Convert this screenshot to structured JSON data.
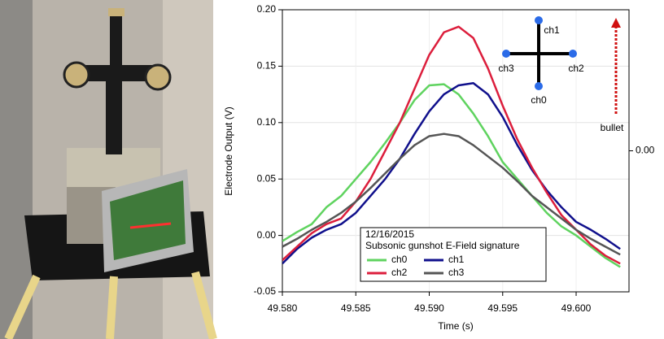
{
  "chart_data": {
    "type": "line",
    "x_label": "Time (s)",
    "y_label": "Electrode Output (V)",
    "x": [
      49.58,
      49.581,
      49.582,
      49.583,
      49.584,
      49.585,
      49.586,
      49.587,
      49.588,
      49.589,
      49.59,
      49.591,
      49.592,
      49.593,
      49.594,
      49.595,
      49.596,
      49.597,
      49.598,
      49.599,
      49.6,
      49.601,
      49.602,
      49.603
    ],
    "series": [
      {
        "name": "ch0",
        "color": "#5fd35f",
        "values": [
          -0.005,
          0.003,
          0.01,
          0.025,
          0.035,
          0.05,
          0.065,
          0.082,
          0.1,
          0.12,
          0.133,
          0.134,
          0.125,
          0.108,
          0.088,
          0.065,
          0.05,
          0.035,
          0.02,
          0.008,
          0.0,
          -0.01,
          -0.02,
          -0.028
        ]
      },
      {
        "name": "ch1",
        "color": "#10108c",
        "values": [
          -0.025,
          -0.012,
          -0.002,
          0.005,
          0.01,
          0.02,
          0.035,
          0.05,
          0.068,
          0.09,
          0.11,
          0.125,
          0.133,
          0.135,
          0.125,
          0.105,
          0.08,
          0.058,
          0.04,
          0.025,
          0.012,
          0.005,
          -0.003,
          -0.012
        ]
      },
      {
        "name": "ch2",
        "color": "#dc1e3c",
        "values": [
          -0.022,
          -0.01,
          0.002,
          0.01,
          0.015,
          0.03,
          0.05,
          0.075,
          0.1,
          0.13,
          0.16,
          0.18,
          0.185,
          0.175,
          0.148,
          0.115,
          0.085,
          0.06,
          0.038,
          0.018,
          0.005,
          -0.008,
          -0.018,
          -0.025
        ]
      },
      {
        "name": "ch3",
        "color": "#555555",
        "values": [
          -0.01,
          -0.003,
          0.005,
          0.012,
          0.02,
          0.03,
          0.042,
          0.055,
          0.068,
          0.08,
          0.088,
          0.09,
          0.088,
          0.08,
          0.07,
          0.06,
          0.048,
          0.035,
          0.025,
          0.015,
          0.005,
          -0.003,
          -0.01,
          -0.017
        ]
      }
    ],
    "xlim": [
      49.58,
      49.6036
    ],
    "ylim": [
      -0.05,
      0.2
    ],
    "xticks": [
      {
        "value": 49.58,
        "label": "49.580"
      },
      {
        "value": 49.585,
        "label": "49.585"
      },
      {
        "value": 49.59,
        "label": "49.590"
      },
      {
        "value": 49.595,
        "label": "49.595"
      },
      {
        "value": 49.6,
        "label": "49.600"
      }
    ],
    "yticks": [
      {
        "value": -0.05,
        "label": "-0.05"
      },
      {
        "value": 0,
        "label": "0.00"
      },
      {
        "value": 0.05,
        "label": "0.05"
      },
      {
        "value": 0.1,
        "label": "0.10"
      },
      {
        "value": 0.15,
        "label": "0.15"
      },
      {
        "value": 0.2,
        "label": "0.20"
      }
    ],
    "y2lim": [
      -1,
      1
    ],
    "y2ticks": [
      {
        "value": 0,
        "label": "0.00"
      }
    ],
    "grid": true,
    "legend_title": [
      "12/16/2015",
      "Subsonic gunshot E-Field signature"
    ],
    "annotations": [
      "ch1",
      "ch3",
      "ch2",
      "ch0",
      "bullet"
    ]
  }
}
